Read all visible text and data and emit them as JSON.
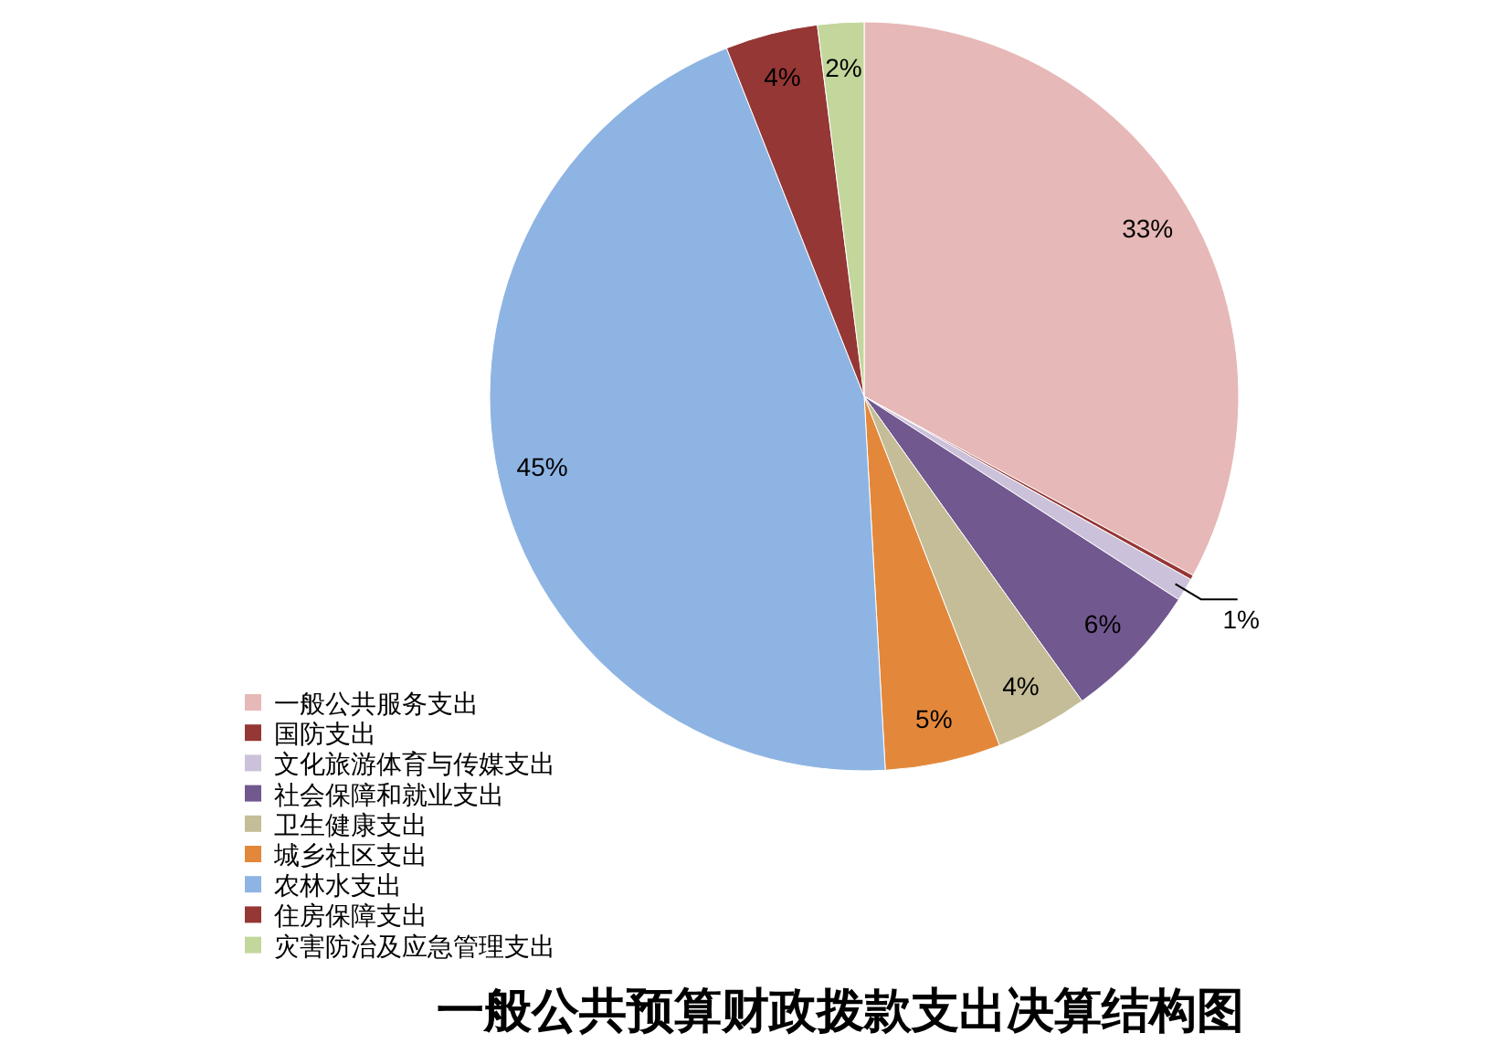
{
  "chart_data": {
    "type": "pie",
    "title": "一般公共预算财政拨款支出决算结构图",
    "categories": [
      "一般公共服务支出",
      "国防支出",
      "文化旅游体育与传媒支出",
      "社会保障和就业支出",
      "卫生健康支出",
      "城乡社区支出",
      "农林水支出",
      "住房保障支出",
      "灾害防治及应急管理支出"
    ],
    "values": [
      33,
      0.2,
      1,
      6,
      4,
      5,
      45,
      4,
      2
    ],
    "value_labels": [
      "33%",
      null,
      "1%",
      "6%",
      "4%",
      "5%",
      "45%",
      "4%",
      "2%"
    ],
    "colors": [
      "#e6b8b7",
      "#953735",
      "#ccc1da",
      "#71588f",
      "#c4bd97",
      "#e3883b",
      "#8eb4e3",
      "#953735",
      "#c3d69b"
    ],
    "legend": "bottom left"
  }
}
